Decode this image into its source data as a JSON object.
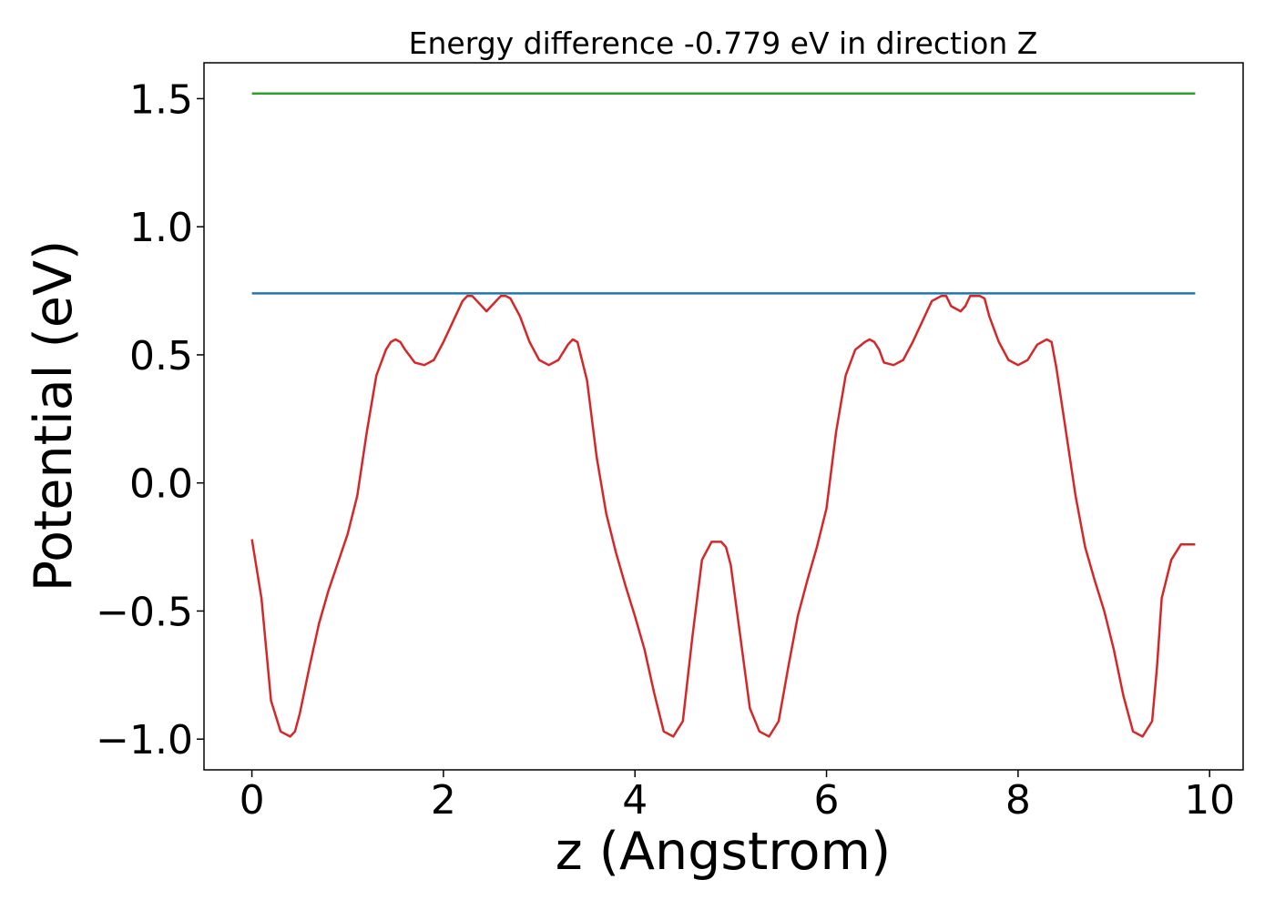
{
  "chart_data": {
    "type": "line",
    "title": "Energy difference -0.779 eV in direction Z",
    "xlabel": "z (Angstrom)",
    "ylabel": "Potential (eV)",
    "xlim": [
      -0.5,
      10.35
    ],
    "ylim": [
      -1.12,
      1.64
    ],
    "x_ticks": [
      0,
      2,
      4,
      6,
      8,
      10
    ],
    "x_tick_labels": [
      "0",
      "2",
      "4",
      "6",
      "8",
      "10"
    ],
    "y_ticks": [
      -1.0,
      -0.5,
      0.0,
      0.5,
      1.0,
      1.5
    ],
    "y_tick_labels": [
      "−1.0",
      "−0.5",
      "0.0",
      "0.5",
      "1.0",
      "1.5"
    ],
    "grid": false,
    "series": [
      {
        "color": "#d62728",
        "x": [
          0.0,
          0.1,
          0.2,
          0.3,
          0.4,
          0.45,
          0.5,
          0.6,
          0.7,
          0.8,
          0.9,
          1.0,
          1.1,
          1.2,
          1.3,
          1.4,
          1.45,
          1.5,
          1.55,
          1.6,
          1.7,
          1.8,
          1.9,
          2.0,
          2.1,
          2.2,
          2.25,
          2.3,
          2.4,
          2.45,
          2.5,
          2.6,
          2.65,
          2.7,
          2.8,
          2.9,
          3.0,
          3.1,
          3.2,
          3.3,
          3.35,
          3.4,
          3.5,
          3.6,
          3.7,
          3.8,
          3.9,
          4.0,
          4.1,
          4.2,
          4.3,
          4.4,
          4.5,
          4.6,
          4.7,
          4.8,
          4.9,
          4.95,
          5.0,
          5.1,
          5.2,
          5.3,
          5.4,
          5.5,
          5.6,
          5.7,
          5.8,
          5.9,
          6.0,
          6.1,
          6.2,
          6.3,
          6.4,
          6.45,
          6.5,
          6.55,
          6.6,
          6.7,
          6.8,
          6.9,
          7.0,
          7.1,
          7.2,
          7.25,
          7.3,
          7.4,
          7.45,
          7.5,
          7.6,
          7.65,
          7.7,
          7.8,
          7.9,
          8.0,
          8.1,
          8.2,
          8.3,
          8.35,
          8.4,
          8.5,
          8.6,
          8.7,
          8.8,
          8.9,
          9.0,
          9.1,
          9.2,
          9.3,
          9.4,
          9.45,
          9.5,
          9.6,
          9.7,
          9.8,
          9.85
        ],
        "y": [
          -0.22,
          -0.45,
          -0.85,
          -0.97,
          -0.99,
          -0.97,
          -0.9,
          -0.72,
          -0.55,
          -0.42,
          -0.31,
          -0.2,
          -0.05,
          0.2,
          0.42,
          0.52,
          0.55,
          0.56,
          0.55,
          0.52,
          0.47,
          0.46,
          0.48,
          0.55,
          0.63,
          0.71,
          0.73,
          0.73,
          0.69,
          0.67,
          0.69,
          0.73,
          0.73,
          0.72,
          0.65,
          0.55,
          0.48,
          0.46,
          0.48,
          0.54,
          0.56,
          0.55,
          0.4,
          0.1,
          -0.12,
          -0.27,
          -0.4,
          -0.52,
          -0.65,
          -0.82,
          -0.97,
          -0.99,
          -0.93,
          -0.6,
          -0.3,
          -0.23,
          -0.23,
          -0.25,
          -0.32,
          -0.6,
          -0.88,
          -0.97,
          -0.99,
          -0.93,
          -0.72,
          -0.52,
          -0.38,
          -0.25,
          -0.1,
          0.2,
          0.42,
          0.52,
          0.55,
          0.56,
          0.55,
          0.52,
          0.47,
          0.46,
          0.48,
          0.55,
          0.63,
          0.71,
          0.73,
          0.73,
          0.69,
          0.67,
          0.69,
          0.73,
          0.73,
          0.72,
          0.65,
          0.55,
          0.48,
          0.46,
          0.48,
          0.54,
          0.56,
          0.55,
          0.45,
          0.2,
          -0.05,
          -0.25,
          -0.38,
          -0.5,
          -0.65,
          -0.83,
          -0.97,
          -0.99,
          -0.93,
          -0.72,
          -0.45,
          -0.3,
          -0.24,
          -0.24,
          -0.24
        ]
      },
      {
        "color": "#1f77b4",
        "x": [
          0.0,
          9.85
        ],
        "y": [
          0.74,
          0.74
        ]
      },
      {
        "color": "#2ca02c",
        "x": [
          0.0,
          9.85
        ],
        "y": [
          1.52,
          1.52
        ]
      }
    ]
  }
}
